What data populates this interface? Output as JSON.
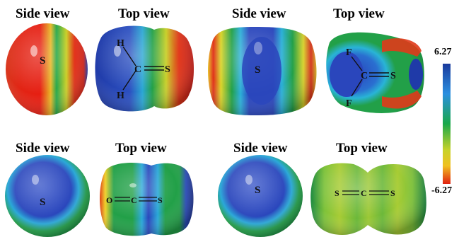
{
  "panels": [
    {
      "id": "h2cs",
      "side_title": "Side view",
      "top_title": "Top view",
      "side_atom": "S",
      "top_atoms": [
        "H",
        "H",
        "C",
        "S"
      ]
    },
    {
      "id": "f2cs",
      "side_title": "Side view",
      "top_title": "Top view",
      "side_atom": "S",
      "top_atoms": [
        "F",
        "F",
        "C",
        "S"
      ]
    },
    {
      "id": "ocs",
      "side_title": "Side view",
      "top_title": "Top view",
      "side_atom": "S",
      "top_atoms": [
        "O",
        "C",
        "S"
      ]
    },
    {
      "id": "scs",
      "side_title": "Side view",
      "top_title": "Top view",
      "side_atom": "S",
      "top_atoms": [
        "S",
        "C",
        "S"
      ]
    }
  ],
  "colorbar": {
    "max_label": "6.27",
    "min_label": "-6.27",
    "colors": [
      "#1a3a9c",
      "#2b8fe0",
      "#1aa84a",
      "#c8d22a",
      "#f0c020",
      "#e02010"
    ]
  },
  "palette": {
    "blue": "#2a43b8",
    "cyan": "#29a6d8",
    "green": "#1e9e4a",
    "yellow": "#d6d62a",
    "red": "#e0201a"
  }
}
